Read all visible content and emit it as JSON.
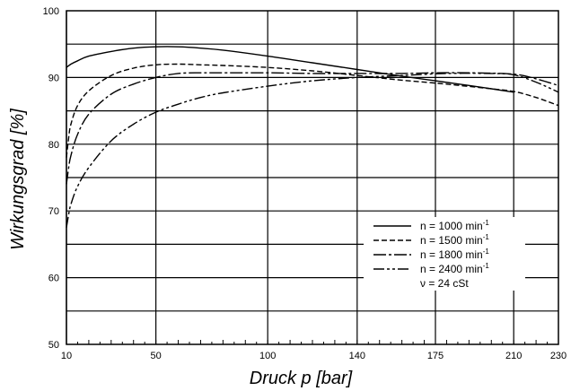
{
  "chart_data": {
    "type": "line",
    "title": "",
    "xlabel": "Druck p [bar]",
    "ylabel": "Wirkungsgrad [%]",
    "xlim": [
      10,
      230
    ],
    "ylim": [
      50,
      100
    ],
    "x_ticks": [
      10,
      50,
      100,
      140,
      175,
      210,
      230
    ],
    "x_tick_labels": [
      "10",
      "50",
      "100",
      "140",
      "175",
      "210",
      "230"
    ],
    "y_ticks": [
      50,
      60,
      70,
      80,
      90,
      100
    ],
    "y_tick_labels": [
      "50",
      "60",
      "70",
      "80",
      "90",
      "100"
    ],
    "grid": true,
    "legend_position": "bottom-right",
    "series": [
      {
        "name": "n =  1000 min",
        "unit_sup": "-1",
        "dash": "solid",
        "x": [
          10,
          12,
          15,
          20,
          30,
          40,
          50,
          60,
          70,
          80,
          100,
          120,
          140,
          160,
          175,
          190,
          200,
          210
        ],
        "y": [
          91.5,
          92.0,
          92.5,
          93.2,
          93.9,
          94.4,
          94.6,
          94.6,
          94.4,
          94.1,
          93.2,
          92.2,
          91.2,
          90.2,
          89.5,
          88.8,
          88.3,
          87.8
        ]
      },
      {
        "name": "n =  1500 min",
        "unit_sup": "-1",
        "dash": "6,3",
        "x": [
          10,
          11,
          12,
          15,
          20,
          30,
          40,
          50,
          60,
          70,
          80,
          100,
          120,
          140,
          160,
          180,
          200,
          210,
          220,
          230
        ],
        "y": [
          78,
          81,
          83,
          85.8,
          88,
          90.3,
          91.4,
          91.9,
          92.0,
          91.9,
          91.8,
          91.5,
          91.0,
          90.3,
          89.6,
          89.0,
          88.3,
          87.9,
          87.0,
          85.8
        ]
      },
      {
        "name": "n =  1800 min",
        "unit_sup": "-1",
        "dash": "14,3,3,3",
        "x": [
          10,
          11,
          12,
          15,
          20,
          30,
          40,
          50,
          60,
          70,
          80,
          100,
          120,
          140,
          160,
          175,
          190,
          210,
          220,
          230
        ],
        "y": [
          74,
          76.5,
          78.3,
          81.5,
          84.5,
          87.5,
          89.0,
          90.0,
          90.6,
          90.7,
          90.7,
          90.7,
          90.6,
          90.6,
          90.6,
          90.7,
          90.7,
          90.5,
          89.8,
          88.8
        ]
      },
      {
        "name": "n =  2400 min",
        "unit_sup": "-1",
        "dash": "12,3,3,3,3,3",
        "x": [
          10,
          11,
          12,
          15,
          20,
          30,
          40,
          50,
          60,
          70,
          80,
          100,
          120,
          140,
          160,
          180,
          200,
          210,
          220,
          230
        ],
        "y": [
          67.5,
          69.5,
          71.0,
          73.7,
          76.5,
          80.5,
          83.0,
          84.8,
          86.0,
          87.0,
          87.7,
          88.7,
          89.5,
          90.0,
          90.3,
          90.6,
          90.6,
          90.4,
          89.3,
          87.8
        ]
      }
    ],
    "legend_extra": "ν  =  24 cSt"
  }
}
